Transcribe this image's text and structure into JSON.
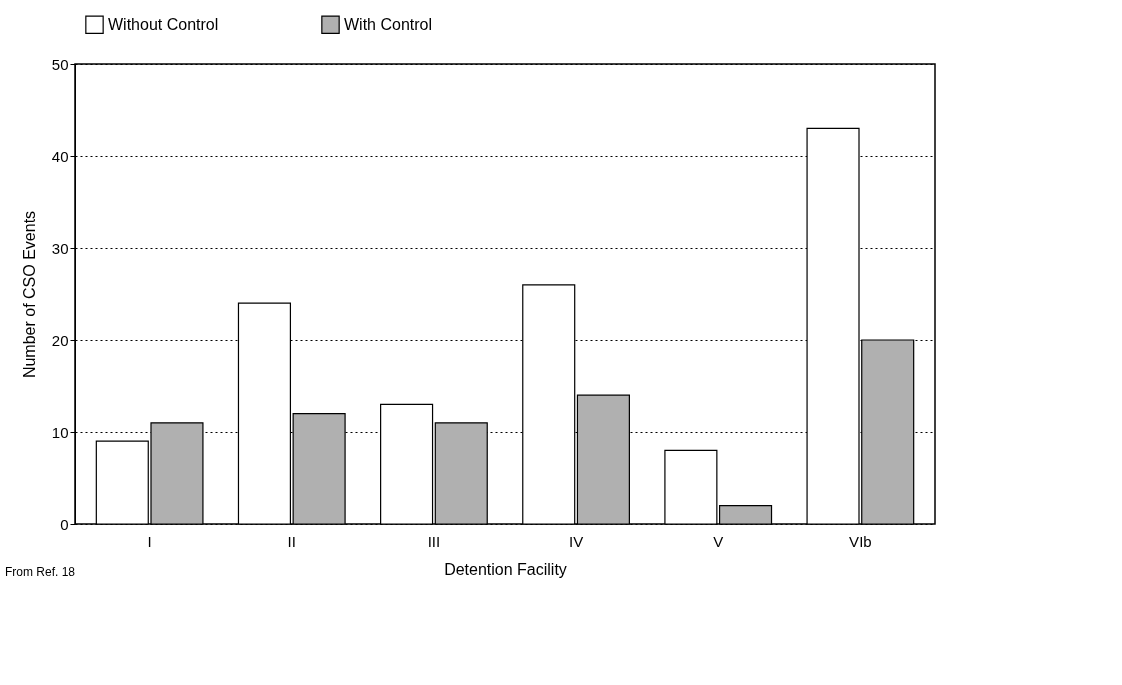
{
  "chart_data": {
    "type": "bar",
    "xlabel": "Detention Facility",
    "ylabel": "Number of CSO Events",
    "categories": [
      "I",
      "II",
      "III",
      "IV",
      "V",
      "VIb"
    ],
    "series": [
      {
        "name": "Without Control",
        "color": "#ffffff",
        "values": [
          9,
          24,
          13,
          26,
          8,
          43
        ]
      },
      {
        "name": "With Control",
        "color": "#b0b0b0",
        "values": [
          11,
          12,
          11,
          14,
          2,
          20
        ]
      }
    ],
    "ylim": [
      0,
      50
    ],
    "yticks": [
      0,
      10,
      20,
      30,
      40,
      50
    ],
    "grid": "y",
    "legend": "top",
    "annotations": [
      "From Ref. 18"
    ]
  }
}
